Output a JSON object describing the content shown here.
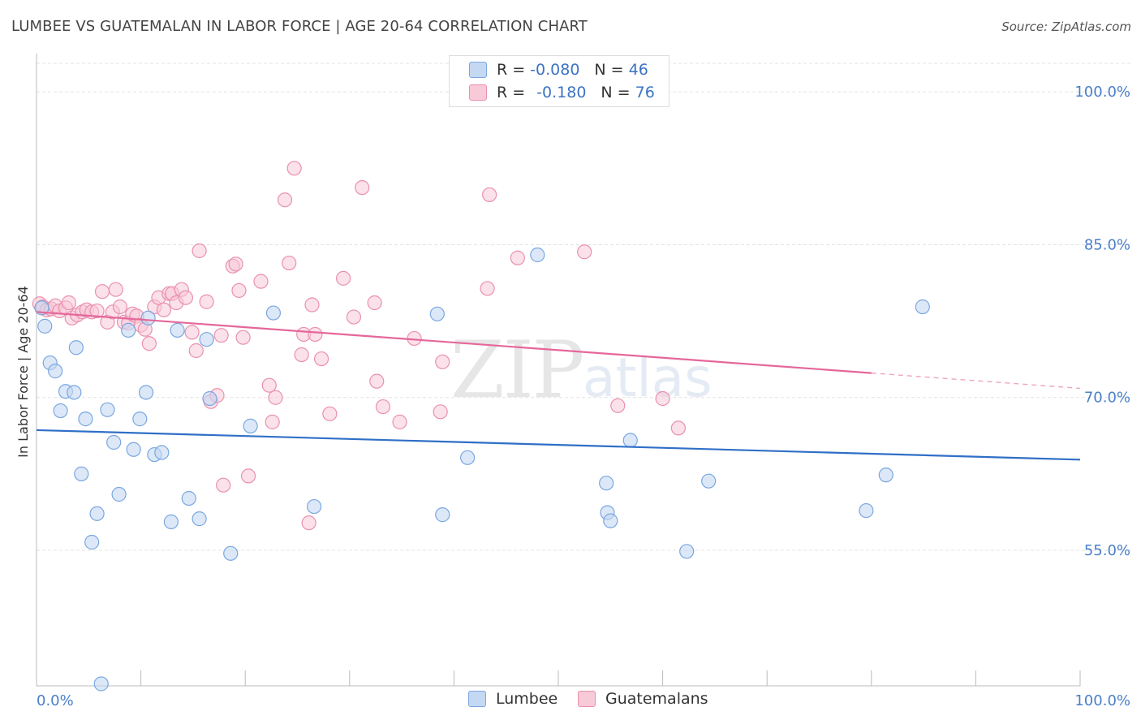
{
  "header": {
    "title": "LUMBEE VS GUATEMALAN IN LABOR FORCE | AGE 20-64 CORRELATION CHART",
    "source": "Source: ZipAtlas.com"
  },
  "watermark": {
    "zip": "ZIP",
    "atlas": "atlas"
  },
  "legend": {
    "rows": [
      {
        "r_label": "R = ",
        "r_value": "-0.080",
        "n_label": "N = ",
        "n_value": "46"
      },
      {
        "r_label": "R = ",
        "r_value": "-0.180",
        "n_label": "N = ",
        "n_value": "76"
      }
    ]
  },
  "bottom_legend": {
    "lumbee": "Lumbee",
    "guatemalans": "Guatemalans"
  },
  "colors": {
    "lumbee_fill": "#c5d8f3",
    "lumbee_stroke": "#7aa7e0",
    "lumbee_line": "#2f6fc7",
    "guat_fill": "#f8c9d7",
    "guat_stroke": "#e991ae",
    "guat_line": "#e5679a",
    "grid": "#e3e3e3",
    "tick_text": "#4a7fc8"
  },
  "chart_data": {
    "type": "scatter",
    "title": "LUMBEE VS GUATEMALAN IN LABOR FORCE | AGE 20-64 CORRELATION CHART",
    "xlabel": "",
    "ylabel": "In Labor Force | Age 20-64",
    "xlim": [
      0,
      100
    ],
    "ylim": [
      41.7,
      102.8
    ],
    "x_tick_labels": [
      "0.0%",
      "100.0%"
    ],
    "y_ticks": [
      55,
      70,
      85,
      100
    ],
    "y_tick_labels": [
      "55.0%",
      "70.0%",
      "85.0%",
      "100.0%"
    ],
    "grid": true,
    "legend_position": "top-center",
    "series": [
      {
        "name": "Lumbee",
        "r": -0.08,
        "n": 46,
        "trend": {
          "x": [
            0,
            100
          ],
          "y": [
            66.8,
            63.9
          ]
        },
        "points": [
          [
            0.5,
            78.8
          ],
          [
            0.8,
            77.0
          ],
          [
            1.3,
            73.4
          ],
          [
            1.8,
            72.6
          ],
          [
            2.3,
            68.7
          ],
          [
            2.8,
            70.6
          ],
          [
            3.6,
            70.5
          ],
          [
            3.8,
            74.9
          ],
          [
            4.3,
            62.5
          ],
          [
            4.7,
            67.9
          ],
          [
            5.3,
            55.8
          ],
          [
            5.8,
            58.6
          ],
          [
            6.2,
            41.9
          ],
          [
            6.8,
            68.8
          ],
          [
            7.4,
            65.6
          ],
          [
            7.9,
            60.5
          ],
          [
            8.8,
            76.6
          ],
          [
            9.3,
            64.9
          ],
          [
            9.9,
            67.9
          ],
          [
            10.5,
            70.5
          ],
          [
            10.7,
            77.8
          ],
          [
            11.3,
            64.4
          ],
          [
            12.0,
            64.6
          ],
          [
            12.9,
            57.8
          ],
          [
            13.5,
            76.6
          ],
          [
            14.6,
            60.1
          ],
          [
            15.6,
            58.1
          ],
          [
            16.3,
            75.7
          ],
          [
            16.6,
            69.9
          ],
          [
            18.6,
            54.7
          ],
          [
            20.5,
            67.2
          ],
          [
            22.7,
            78.3
          ],
          [
            26.6,
            59.3
          ],
          [
            38.4,
            78.2
          ],
          [
            38.9,
            58.5
          ],
          [
            41.3,
            64.1
          ],
          [
            48.0,
            84.0
          ],
          [
            54.6,
            61.6
          ],
          [
            54.7,
            58.7
          ],
          [
            55.0,
            57.9
          ],
          [
            56.9,
            65.8
          ],
          [
            62.3,
            54.9
          ],
          [
            64.4,
            61.8
          ],
          [
            79.5,
            58.9
          ],
          [
            81.4,
            62.4
          ],
          [
            84.9,
            78.9
          ]
        ]
      },
      {
        "name": "Guatemalans",
        "r": -0.18,
        "n": 76,
        "trend": {
          "x": [
            0,
            80
          ],
          "y": [
            78.4,
            72.4
          ]
        },
        "trend_dashed": {
          "x": [
            80,
            100
          ],
          "y": [
            72.4,
            70.9
          ]
        },
        "points": [
          [
            0.3,
            79.2
          ],
          [
            0.6,
            78.9
          ],
          [
            1.0,
            78.6
          ],
          [
            1.4,
            78.7
          ],
          [
            1.8,
            79.0
          ],
          [
            2.2,
            78.5
          ],
          [
            2.8,
            78.8
          ],
          [
            3.1,
            79.3
          ],
          [
            3.4,
            77.8
          ],
          [
            3.9,
            78.1
          ],
          [
            4.4,
            78.4
          ],
          [
            4.8,
            78.6
          ],
          [
            5.3,
            78.4
          ],
          [
            5.8,
            78.5
          ],
          [
            6.3,
            80.4
          ],
          [
            6.8,
            77.4
          ],
          [
            7.3,
            78.4
          ],
          [
            7.6,
            80.6
          ],
          [
            8.0,
            78.9
          ],
          [
            8.4,
            77.4
          ],
          [
            8.8,
            77.3
          ],
          [
            9.2,
            78.2
          ],
          [
            9.6,
            78.0
          ],
          [
            10.0,
            77.1
          ],
          [
            10.4,
            76.7
          ],
          [
            10.8,
            75.3
          ],
          [
            11.3,
            78.9
          ],
          [
            11.7,
            79.8
          ],
          [
            12.2,
            78.6
          ],
          [
            12.7,
            80.2
          ],
          [
            13.0,
            80.2
          ],
          [
            13.4,
            79.3
          ],
          [
            13.9,
            80.6
          ],
          [
            14.3,
            79.8
          ],
          [
            14.9,
            76.4
          ],
          [
            15.3,
            74.6
          ],
          [
            15.6,
            84.4
          ],
          [
            16.3,
            79.4
          ],
          [
            16.7,
            69.6
          ],
          [
            17.3,
            70.2
          ],
          [
            17.7,
            76.1
          ],
          [
            17.9,
            61.4
          ],
          [
            18.8,
            82.9
          ],
          [
            19.1,
            83.1
          ],
          [
            19.4,
            80.5
          ],
          [
            19.8,
            75.9
          ],
          [
            20.3,
            62.3
          ],
          [
            21.5,
            81.4
          ],
          [
            22.3,
            71.2
          ],
          [
            22.6,
            67.6
          ],
          [
            22.9,
            70.0
          ],
          [
            23.8,
            89.4
          ],
          [
            24.2,
            83.2
          ],
          [
            24.7,
            92.5
          ],
          [
            25.4,
            74.2
          ],
          [
            25.6,
            76.2
          ],
          [
            26.1,
            57.7
          ],
          [
            26.4,
            79.1
          ],
          [
            26.7,
            76.2
          ],
          [
            27.3,
            73.8
          ],
          [
            28.1,
            68.4
          ],
          [
            29.4,
            81.7
          ],
          [
            30.4,
            77.9
          ],
          [
            31.2,
            90.6
          ],
          [
            32.4,
            79.3
          ],
          [
            32.6,
            71.6
          ],
          [
            33.2,
            69.1
          ],
          [
            34.8,
            67.6
          ],
          [
            36.2,
            75.8
          ],
          [
            38.7,
            68.6
          ],
          [
            38.9,
            73.5
          ],
          [
            43.2,
            80.7
          ],
          [
            43.4,
            89.9
          ],
          [
            46.1,
            83.7
          ],
          [
            52.5,
            84.3
          ],
          [
            55.7,
            69.2
          ],
          [
            60.0,
            69.9
          ],
          [
            61.5,
            67.0
          ]
        ]
      }
    ]
  }
}
